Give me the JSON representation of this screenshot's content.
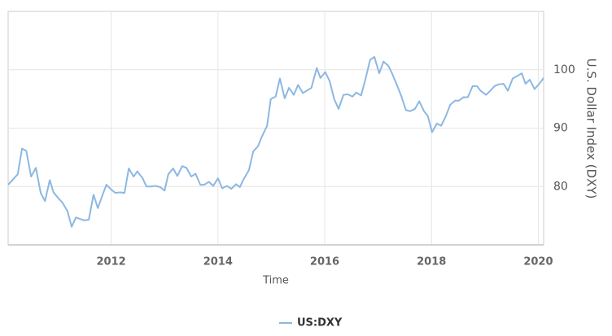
{
  "chart_data": {
    "type": "line",
    "x_label": "Time",
    "y_label": "U.S. Dollar Index (DXY)",
    "x": [
      2010.07,
      2010.25,
      2010.33,
      2010.41,
      2010.5,
      2010.59,
      2010.68,
      2010.76,
      2010.85,
      2010.92,
      2011.02,
      2011.09,
      2011.18,
      2011.26,
      2011.34,
      2011.43,
      2011.5,
      2011.58,
      2011.67,
      2011.75,
      2011.84,
      2011.91,
      2012.01,
      2012.08,
      2012.16,
      2012.25,
      2012.33,
      2012.42,
      2012.49,
      2012.59,
      2012.66,
      2012.75,
      2012.83,
      2012.92,
      2013.0,
      2013.07,
      2013.16,
      2013.24,
      2013.33,
      2013.41,
      2013.5,
      2013.58,
      2013.67,
      2013.74,
      2013.83,
      2013.91,
      2014.0,
      2014.08,
      2014.17,
      2014.25,
      2014.34,
      2014.41,
      2014.49,
      2014.58,
      2014.66,
      2014.75,
      2014.82,
      2014.92,
      2014.99,
      2015.08,
      2015.16,
      2015.25,
      2015.33,
      2015.42,
      2015.5,
      2015.59,
      2015.66,
      2015.75,
      2015.85,
      2015.92,
      2016.01,
      2016.09,
      2016.18,
      2016.26,
      2016.35,
      2016.43,
      2016.52,
      2016.59,
      2016.68,
      2016.76,
      2016.85,
      2016.93,
      2017.02,
      2017.1,
      2017.19,
      2017.26,
      2017.36,
      2017.43,
      2017.52,
      2017.6,
      2017.69,
      2017.77,
      2017.86,
      2017.93,
      2018.01,
      2018.1,
      2018.18,
      2018.27,
      2018.35,
      2018.44,
      2018.51,
      2018.6,
      2018.68,
      2018.77,
      2018.85,
      2018.92,
      2019.02,
      2019.09,
      2019.18,
      2019.26,
      2019.35,
      2019.43,
      2019.52,
      2019.6,
      2019.69,
      2019.76,
      2019.84,
      2019.93,
      2020.01,
      2020.1
    ],
    "series": [
      {
        "name": "US:DXY",
        "color": "#8cb8e2",
        "values": [
          80.3,
          82.1,
          86.5,
          86.1,
          81.7,
          83.2,
          78.9,
          77.5,
          81.1,
          79.0,
          77.9,
          77.2,
          75.8,
          73.1,
          74.7,
          74.4,
          74.2,
          74.3,
          78.6,
          76.3,
          78.6,
          80.3,
          79.4,
          78.9,
          79.0,
          78.9,
          83.1,
          81.7,
          82.6,
          81.4,
          80.0,
          80.0,
          80.1,
          79.9,
          79.3,
          82.1,
          83.1,
          81.8,
          83.5,
          83.2,
          81.7,
          82.2,
          80.3,
          80.3,
          80.8,
          80.1,
          81.4,
          79.7,
          80.1,
          79.6,
          80.4,
          79.9,
          81.4,
          82.8,
          86.0,
          86.9,
          88.5,
          90.4,
          95.0,
          95.4,
          98.5,
          95.1,
          96.9,
          95.7,
          97.4,
          96.0,
          96.4,
          96.9,
          100.3,
          98.6,
          99.6,
          98.1,
          94.9,
          93.3,
          95.7,
          95.8,
          95.4,
          96.1,
          95.6,
          98.3,
          101.7,
          102.2,
          99.4,
          101.4,
          100.7,
          99.4,
          97.2,
          95.6,
          93.1,
          92.9,
          93.3,
          94.6,
          92.9,
          92.1,
          89.3,
          90.8,
          90.4,
          92.1,
          94.0,
          94.7,
          94.7,
          95.3,
          95.3,
          97.2,
          97.2,
          96.4,
          95.7,
          96.3,
          97.2,
          97.5,
          97.6,
          96.4,
          98.5,
          98.9,
          99.4,
          97.6,
          98.3,
          96.7,
          97.5,
          98.6
        ]
      }
    ],
    "xlim": [
      2010.07,
      2020.1
    ],
    "xticks": [
      2012,
      2014,
      2016,
      2018,
      2020
    ],
    "ylim": [
      70,
      110
    ],
    "yticks": [
      80,
      90,
      100
    ],
    "grid": true,
    "legend": "bottom"
  }
}
